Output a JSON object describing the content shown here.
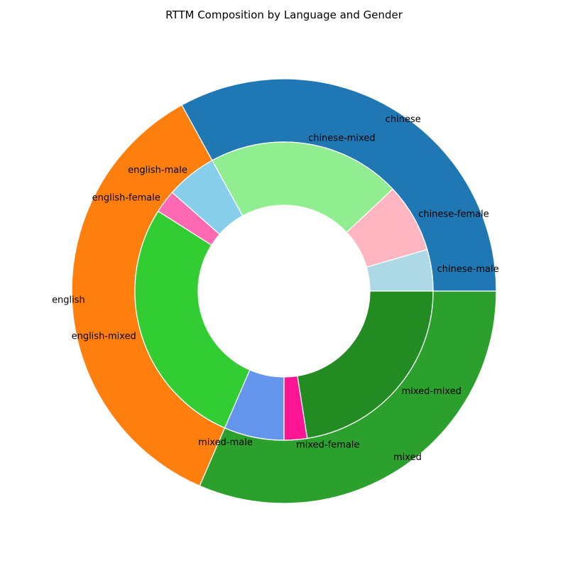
{
  "chart_data": {
    "type": "pie",
    "title": "RTTM Composition by Language and Gender",
    "outer": [
      {
        "label": "chinese",
        "value": 33.0,
        "color": "#1f77b4"
      },
      {
        "label": "english",
        "value": 35.5,
        "color": "#ff7f0e"
      },
      {
        "label": "mixed",
        "value": 31.5,
        "color": "#2ca02c"
      }
    ],
    "inner": [
      {
        "label": "chinese-male",
        "value": 4.5,
        "color": "#add8e6"
      },
      {
        "label": "chinese-female",
        "value": 7.5,
        "color": "#ffb6c1"
      },
      {
        "label": "chinese-mixed",
        "value": 21.0,
        "color": "#90ee90"
      },
      {
        "label": "english-male",
        "value": 5.5,
        "color": "#87ceeb"
      },
      {
        "label": "english-female",
        "value": 2.5,
        "color": "#ff69b4"
      },
      {
        "label": "english-mixed",
        "value": 27.5,
        "color": "#32cd32"
      },
      {
        "label": "mixed-male",
        "value": 6.5,
        "color": "#6495ed"
      },
      {
        "label": "mixed-female",
        "value": 2.5,
        "color": "#ff1493"
      },
      {
        "label": "mixed-mixed",
        "value": 22.5,
        "color": "#228b22"
      }
    ]
  }
}
